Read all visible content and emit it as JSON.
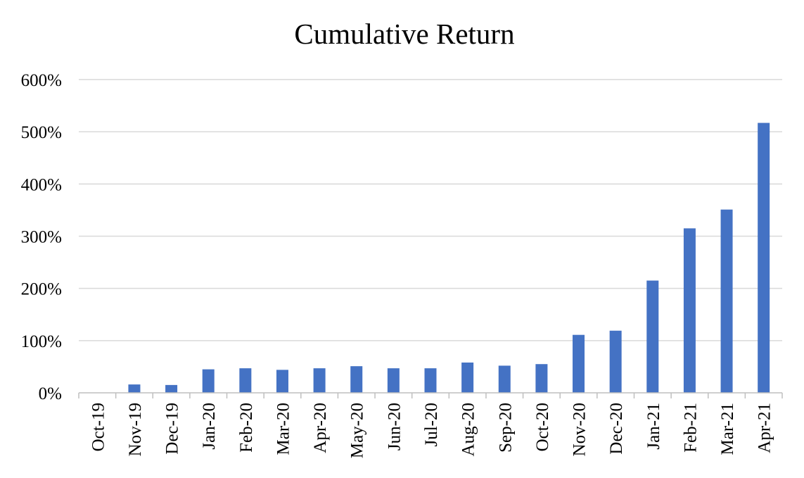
{
  "chart_data": {
    "type": "bar",
    "title": "Cumulative Return",
    "xlabel": "",
    "ylabel": "",
    "categories": [
      "Oct-19",
      "Nov-19",
      "Dec-19",
      "Jan-20",
      "Feb-20",
      "Mar-20",
      "Apr-20",
      "May-20",
      "Jun-20",
      "Jul-20",
      "Aug-20",
      "Sep-20",
      "Oct-20",
      "Nov-20",
      "Dec-20",
      "Jan-21",
      "Feb-21",
      "Mar-21",
      "Apr-21"
    ],
    "series": [
      {
        "values": [
          0,
          16,
          15,
          45,
          47,
          44,
          47,
          51,
          47,
          47,
          58,
          52,
          55,
          111,
          119,
          215,
          315,
          351,
          517
        ],
        "color": "#4472c4"
      }
    ],
    "ylim": [
      0,
      600
    ],
    "yticks": [
      0,
      100,
      200,
      300,
      400,
      500,
      600
    ],
    "ytick_labels": [
      "0%",
      "100%",
      "200%",
      "300%",
      "400%",
      "500%",
      "600%"
    ],
    "grid": true,
    "legend": "none"
  }
}
